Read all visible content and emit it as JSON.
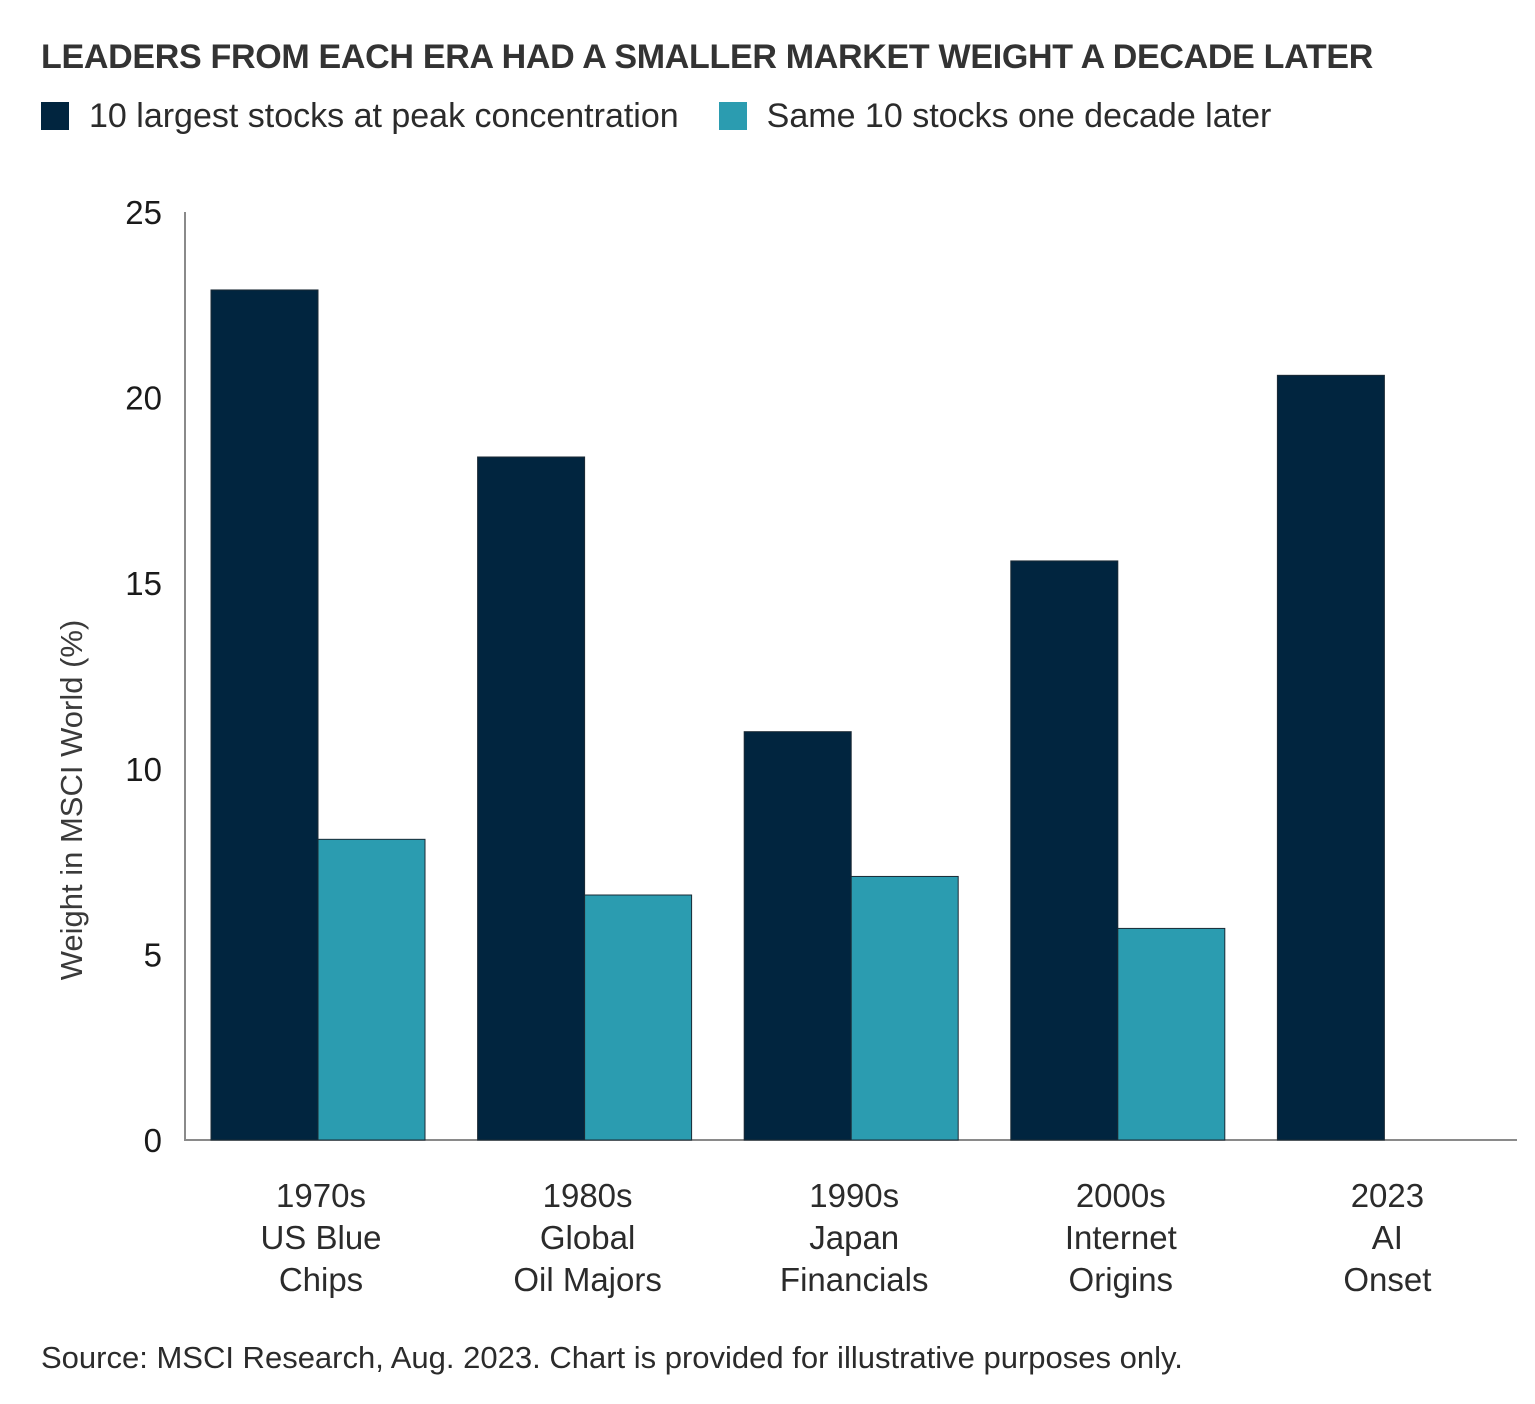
{
  "chart_data": {
    "type": "bar",
    "title": "LEADERS FROM EACH ERA HAD A SMALLER MARKET WEIGHT A DECADE LATER",
    "categories": [
      [
        "1970s",
        "US Blue",
        "Chips"
      ],
      [
        "1980s",
        "Global",
        "Oil Majors"
      ],
      [
        "1990s",
        "Japan",
        "Financials"
      ],
      [
        "2000s",
        "Internet",
        "Origins"
      ],
      [
        "2023",
        "AI",
        "Onset"
      ]
    ],
    "series": [
      {
        "name": "10 largest stocks at peak concentration",
        "color": "#01253f",
        "values": [
          22.9,
          18.4,
          11.0,
          15.6,
          20.6
        ]
      },
      {
        "name": "Same 10 stocks one decade later",
        "color": "#2b9cb0",
        "values": [
          8.1,
          6.6,
          7.1,
          5.7,
          null
        ]
      }
    ],
    "xlabel": "",
    "ylabel": "Weight in MSCI World (%)",
    "ylim": [
      0,
      25
    ],
    "yticks": [
      0,
      5,
      10,
      15,
      20,
      25
    ],
    "grid": false,
    "legend": "top-left",
    "source": "Source: MSCI Research, Aug. 2023. Chart is provided for illustrative purposes only."
  }
}
